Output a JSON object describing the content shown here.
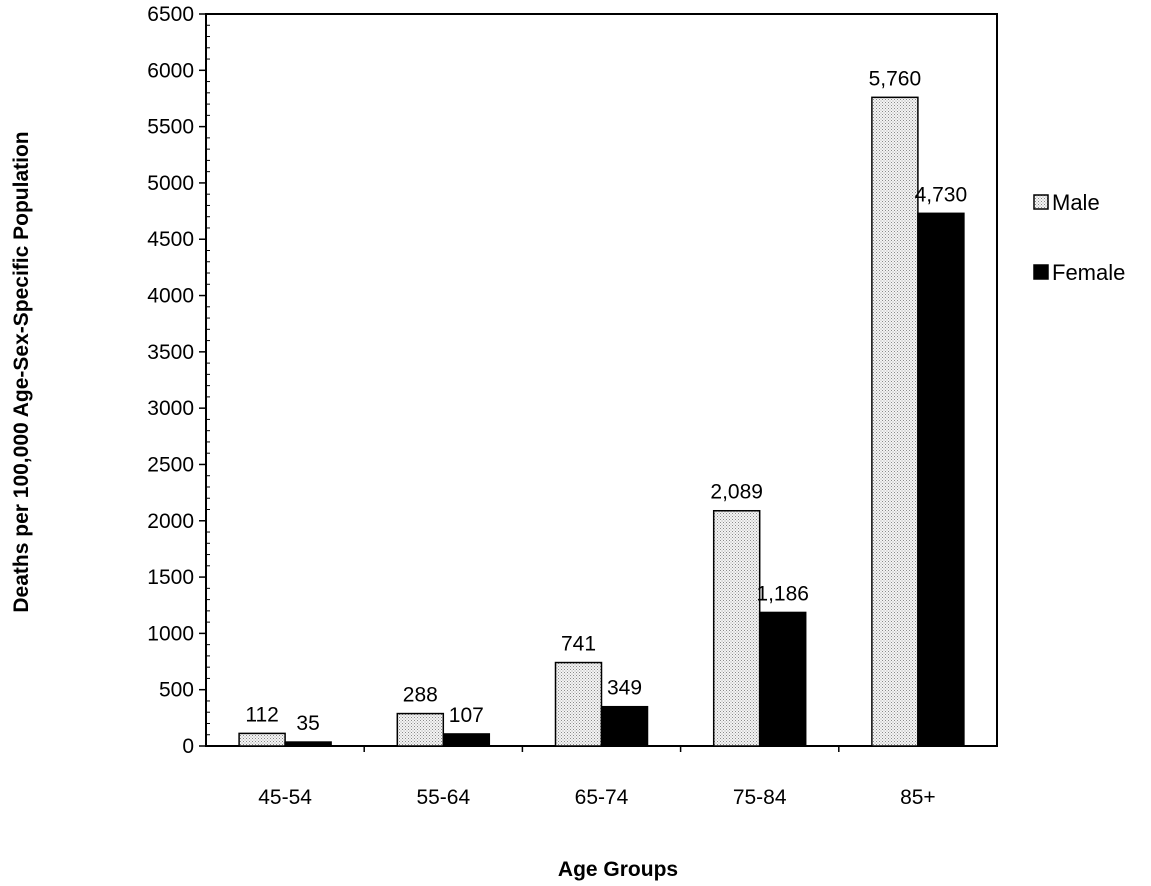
{
  "chart_data": {
    "type": "bar",
    "categories": [
      "45-54",
      "55-64",
      "65-74",
      "75-84",
      "85+"
    ],
    "series": [
      {
        "name": "Male",
        "values": [
          112,
          288,
          741,
          2089,
          5760
        ],
        "labels": [
          "112",
          "288",
          "741",
          "2,089",
          "5,760"
        ],
        "color": "#e0e0e0",
        "pattern": "dotted"
      },
      {
        "name": "Female",
        "values": [
          35,
          107,
          349,
          1186,
          4730
        ],
        "labels": [
          "35",
          "107",
          "349",
          "1,186",
          "4,730"
        ],
        "color": "#000000"
      }
    ],
    "xlabel": "Age Groups",
    "ylabel": "Deaths per 100,000 Age-Sex-Specific Population",
    "ylim": [
      0,
      6500
    ],
    "yticks": [
      0,
      500,
      1000,
      1500,
      2000,
      2500,
      3000,
      3500,
      4000,
      4500,
      5000,
      5500,
      6000,
      6500
    ],
    "grid": false,
    "legend": "right"
  }
}
